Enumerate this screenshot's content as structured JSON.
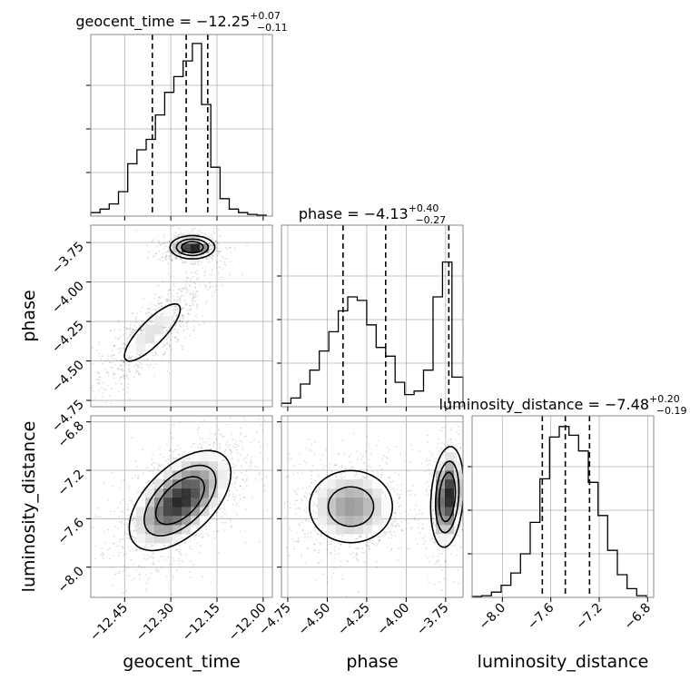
{
  "chart_data": {
    "type": "corner",
    "parameters": [
      "geocent_time",
      "phase",
      "luminosity_distance"
    ],
    "titles": {
      "geocent_time": {
        "prefix": "geocent_time = −12.25",
        "plus": "+0.07",
        "minus": "−0.11"
      },
      "phase": {
        "prefix": "phase = −4.13",
        "plus": "+0.40",
        "minus": "−0.27"
      },
      "luminosity_distance": {
        "prefix": "luminosity_distance = −7.48",
        "plus": "+0.20",
        "minus": "−0.19"
      }
    },
    "ranges": {
      "geocent_time": [
        -12.56,
        -11.97
      ],
      "phase": [
        -4.79,
        -3.64
      ],
      "luminosity_distance": [
        -8.25,
        -6.75
      ]
    },
    "ticks": {
      "geocent_time": {
        "values": [
          -12.45,
          -12.3,
          -12.15,
          -12.0
        ],
        "labels": [
          "−12.45",
          "−12.30",
          "−12.15",
          "−12.00"
        ]
      },
      "phase": {
        "values": [
          -4.75,
          -4.5,
          -4.25,
          -4.0,
          -3.75
        ],
        "labels": [
          "−4.75",
          "−4.50",
          "−4.25",
          "−4.00",
          "−3.75"
        ]
      },
      "luminosity_distance": {
        "values": [
          -8.0,
          -7.6,
          -7.2,
          -6.8
        ],
        "labels": [
          "−8.0",
          "−7.6",
          "−7.2",
          "−6.8"
        ]
      }
    },
    "quantiles": {
      "geocent_time": [
        -12.36,
        -12.25,
        -12.18
      ],
      "phase": [
        -4.4,
        -4.13,
        -3.73
      ],
      "luminosity_distance": [
        -7.67,
        -7.48,
        -7.28
      ]
    },
    "histograms": {
      "geocent_time": {
        "edges": [
          -12.56,
          -12.53,
          -12.5,
          -12.47,
          -12.44,
          -12.41,
          -12.38,
          -12.35,
          -12.32,
          -12.29,
          -12.26,
          -12.23,
          -12.2,
          -12.17,
          -12.14,
          -12.11,
          -12.08,
          -12.05,
          -12.02,
          -11.99
        ],
        "counts": [
          0.02,
          0.04,
          0.07,
          0.14,
          0.3,
          0.38,
          0.44,
          0.58,
          0.71,
          0.8,
          0.89,
          0.99,
          0.64,
          0.28,
          0.1,
          0.04,
          0.02,
          0.01,
          0.005
        ]
      },
      "phase": {
        "edges": [
          -4.79,
          -4.73,
          -4.67,
          -4.61,
          -4.55,
          -4.49,
          -4.43,
          -4.37,
          -4.31,
          -4.25,
          -4.19,
          -4.13,
          -4.07,
          -4.01,
          -3.95,
          -3.89,
          -3.83,
          -3.77,
          -3.71,
          -3.64
        ],
        "counts": [
          0.02,
          0.05,
          0.13,
          0.21,
          0.32,
          0.43,
          0.55,
          0.63,
          0.61,
          0.47,
          0.34,
          0.29,
          0.14,
          0.07,
          0.09,
          0.21,
          0.63,
          0.83,
          0.17
        ]
      },
      "luminosity_distance": {
        "edges": [
          -8.25,
          -8.17,
          -8.09,
          -8.01,
          -7.93,
          -7.85,
          -7.77,
          -7.69,
          -7.61,
          -7.53,
          -7.45,
          -7.37,
          -7.29,
          -7.21,
          -7.13,
          -7.05,
          -6.97,
          -6.89,
          -6.81
        ],
        "counts": [
          0.005,
          0.01,
          0.03,
          0.07,
          0.14,
          0.25,
          0.43,
          0.68,
          0.92,
          0.98,
          0.93,
          0.84,
          0.66,
          0.47,
          0.27,
          0.13,
          0.05,
          0.01
        ]
      }
    },
    "scatter_2d": [
      {
        "x": "geocent_time",
        "y": "phase",
        "components": [
          {
            "mean": [
              -12.23,
              -3.78
            ],
            "sd": [
              0.035,
              0.035
            ],
            "rho": 0.0,
            "weight": 0.45
          },
          {
            "mean": [
              -12.36,
              -4.32
            ],
            "sd": [
              0.07,
              0.14
            ],
            "rho": 0.82,
            "weight": 0.55
          }
        ],
        "density_peaks": [
          [
            -12.22,
            -3.77
          ],
          [
            -12.33,
            -4.33
          ]
        ]
      },
      {
        "x": "geocent_time",
        "y": "luminosity_distance",
        "components": [
          {
            "mean": [
              -12.27,
              -7.45
            ],
            "sd": [
              0.08,
              0.2
            ],
            "rho": 0.55,
            "weight": 1.0
          }
        ],
        "density_peaks": [
          [
            -12.25,
            -7.48
          ]
        ]
      },
      {
        "x": "phase",
        "y": "luminosity_distance",
        "components": [
          {
            "mean": [
              -4.35,
              -7.5
            ],
            "sd": [
              0.15,
              0.17
            ],
            "rho": 0.0,
            "weight": 0.58
          },
          {
            "mean": [
              -3.74,
              -7.42
            ],
            "sd": [
              0.05,
              0.2
            ],
            "rho": 0.2,
            "weight": 0.42
          }
        ],
        "density_peaks": [
          [
            -4.38,
            -7.48
          ],
          [
            -3.73,
            -7.38
          ]
        ]
      }
    ],
    "grid": true,
    "legend": "none"
  }
}
